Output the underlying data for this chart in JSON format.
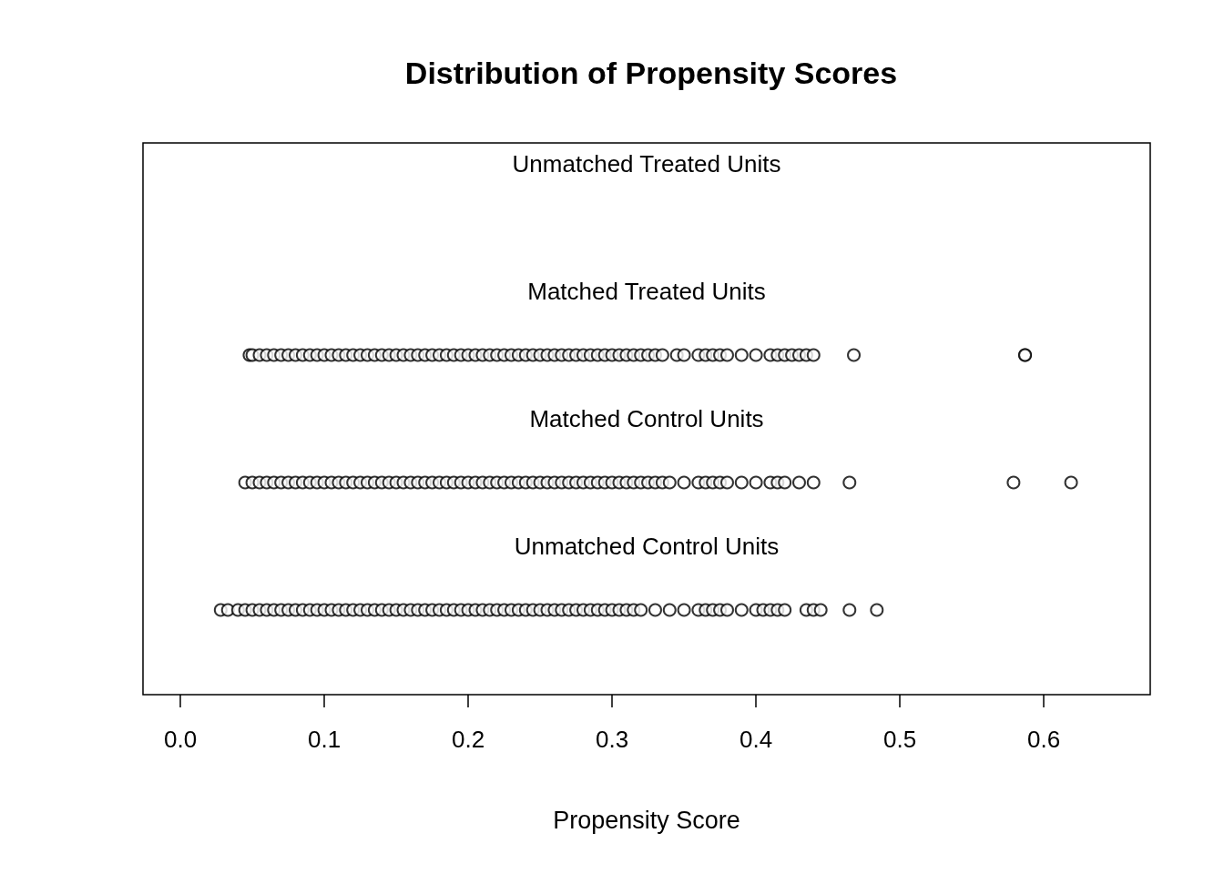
{
  "chart_data": {
    "type": "scatter",
    "title": "Distribution of Propensity Scores",
    "xlabel": "Propensity Score",
    "orientation": "horizontal",
    "marker": "circle",
    "grid": false,
    "categories": [
      "Unmatched Treated Units",
      "Matched Treated Units",
      "Matched Control Units",
      "Unmatched Control Units"
    ],
    "xlim": [
      -0.026,
      0.674
    ],
    "xticks": [
      {
        "value": 0,
        "label": "0.0"
      },
      0.1,
      0.2,
      0.3,
      0.4,
      0.5,
      0.6
    ],
    "series": [
      {
        "color": "#000000",
        "x": [
          "Matched Treated Units",
          "Matched Treated Units",
          "Matched Treated Units",
          "Matched Treated Units",
          "Matched Treated Units",
          "Matched Treated Units",
          "Matched Treated Units",
          "Matched Treated Units",
          "Matched Treated Units",
          "Matched Treated Units",
          "Matched Treated Units",
          "Matched Treated Units",
          "Matched Treated Units",
          "Matched Treated Units",
          "Matched Treated Units",
          "Matched Treated Units",
          "Matched Treated Units",
          "Matched Treated Units",
          "Matched Treated Units",
          "Matched Treated Units",
          "Matched Treated Units",
          "Matched Treated Units",
          "Matched Treated Units",
          "Matched Treated Units",
          "Matched Treated Units",
          "Matched Treated Units",
          "Matched Treated Units",
          "Matched Treated Units",
          "Matched Treated Units",
          "Matched Treated Units",
          "Matched Treated Units",
          "Matched Treated Units",
          "Matched Treated Units",
          "Matched Treated Units",
          "Matched Treated Units",
          "Matched Treated Units",
          "Matched Treated Units",
          "Matched Treated Units",
          "Matched Treated Units",
          "Matched Treated Units",
          "Matched Treated Units",
          "Matched Treated Units",
          "Matched Treated Units",
          "Matched Treated Units",
          "Matched Treated Units",
          "Matched Treated Units",
          "Matched Treated Units",
          "Matched Treated Units",
          "Matched Treated Units",
          "Matched Treated Units",
          "Matched Treated Units",
          "Matched Treated Units",
          "Matched Treated Units",
          "Matched Treated Units",
          "Matched Treated Units",
          "Matched Treated Units",
          "Matched Treated Units",
          "Matched Treated Units",
          "Matched Treated Units",
          "Matched Treated Units",
          "Matched Treated Units",
          "Matched Treated Units",
          "Matched Treated Units",
          "Matched Treated Units",
          "Matched Treated Units",
          "Matched Treated Units",
          "Matched Treated Units",
          "Matched Treated Units",
          "Matched Treated Units",
          "Matched Treated Units",
          "Matched Treated Units",
          "Matched Treated Units",
          "Matched Treated Units",
          "Matched Treated Units",
          "Matched Treated Units",
          "Matched Treated Units",
          "Matched Treated Units",
          "Matched Treated Units"
        ],
        "values": [
          0.048,
          0.05,
          0.055,
          0.06,
          0.065,
          0.07,
          0.075,
          0.08,
          0.085,
          0.09,
          0.095,
          0.1,
          0.105,
          0.11,
          0.115,
          0.12,
          0.125,
          0.13,
          0.135,
          0.14,
          0.145,
          0.15,
          0.155,
          0.16,
          0.165,
          0.17,
          0.175,
          0.18,
          0.185,
          0.19,
          0.195,
          0.2,
          0.205,
          0.21,
          0.215,
          0.22,
          0.225,
          0.23,
          0.235,
          0.24,
          0.245,
          0.25,
          0.255,
          0.26,
          0.265,
          0.27,
          0.275,
          0.28,
          0.285,
          0.29,
          0.295,
          0.3,
          0.305,
          0.31,
          0.315,
          0.32,
          0.325,
          0.33,
          0.335,
          0.345,
          0.35,
          0.36,
          0.365,
          0.37,
          0.375,
          0.38,
          0.39,
          0.4,
          0.41,
          0.415,
          0.42,
          0.425,
          0.43,
          0.435,
          0.44,
          0.468,
          0.587,
          0.587
        ]
      },
      {
        "color": "#000000",
        "x": [
          "Matched Control Units",
          "Matched Control Units",
          "Matched Control Units",
          "Matched Control Units",
          "Matched Control Units",
          "Matched Control Units",
          "Matched Control Units",
          "Matched Control Units",
          "Matched Control Units",
          "Matched Control Units",
          "Matched Control Units",
          "Matched Control Units",
          "Matched Control Units",
          "Matched Control Units",
          "Matched Control Units",
          "Matched Control Units",
          "Matched Control Units",
          "Matched Control Units",
          "Matched Control Units",
          "Matched Control Units",
          "Matched Control Units",
          "Matched Control Units",
          "Matched Control Units",
          "Matched Control Units",
          "Matched Control Units",
          "Matched Control Units",
          "Matched Control Units",
          "Matched Control Units",
          "Matched Control Units",
          "Matched Control Units",
          "Matched Control Units",
          "Matched Control Units",
          "Matched Control Units",
          "Matched Control Units",
          "Matched Control Units",
          "Matched Control Units",
          "Matched Control Units",
          "Matched Control Units",
          "Matched Control Units",
          "Matched Control Units",
          "Matched Control Units",
          "Matched Control Units",
          "Matched Control Units",
          "Matched Control Units",
          "Matched Control Units",
          "Matched Control Units",
          "Matched Control Units",
          "Matched Control Units",
          "Matched Control Units",
          "Matched Control Units",
          "Matched Control Units",
          "Matched Control Units",
          "Matched Control Units",
          "Matched Control Units",
          "Matched Control Units",
          "Matched Control Units",
          "Matched Control Units",
          "Matched Control Units",
          "Matched Control Units",
          "Matched Control Units",
          "Matched Control Units",
          "Matched Control Units",
          "Matched Control Units",
          "Matched Control Units",
          "Matched Control Units",
          "Matched Control Units",
          "Matched Control Units",
          "Matched Control Units",
          "Matched Control Units",
          "Matched Control Units",
          "Matched Control Units",
          "Matched Control Units",
          "Matched Control Units",
          "Matched Control Units",
          "Matched Control Units",
          "Matched Control Units"
        ],
        "values": [
          0.045,
          0.05,
          0.055,
          0.06,
          0.065,
          0.07,
          0.075,
          0.08,
          0.085,
          0.09,
          0.095,
          0.1,
          0.105,
          0.11,
          0.115,
          0.12,
          0.125,
          0.13,
          0.135,
          0.14,
          0.145,
          0.15,
          0.155,
          0.16,
          0.165,
          0.17,
          0.175,
          0.18,
          0.185,
          0.19,
          0.195,
          0.2,
          0.205,
          0.21,
          0.215,
          0.22,
          0.225,
          0.23,
          0.235,
          0.24,
          0.245,
          0.25,
          0.255,
          0.26,
          0.265,
          0.27,
          0.275,
          0.28,
          0.285,
          0.29,
          0.295,
          0.3,
          0.305,
          0.31,
          0.315,
          0.32,
          0.325,
          0.33,
          0.335,
          0.34,
          0.35,
          0.36,
          0.365,
          0.37,
          0.375,
          0.38,
          0.39,
          0.4,
          0.41,
          0.415,
          0.42,
          0.43,
          0.44,
          0.465,
          0.579,
          0.619
        ]
      },
      {
        "color": "#000000",
        "x": [
          "Unmatched Control Units",
          "Unmatched Control Units",
          "Unmatched Control Units",
          "Unmatched Control Units",
          "Unmatched Control Units",
          "Unmatched Control Units",
          "Unmatched Control Units",
          "Unmatched Control Units",
          "Unmatched Control Units",
          "Unmatched Control Units",
          "Unmatched Control Units",
          "Unmatched Control Units",
          "Unmatched Control Units",
          "Unmatched Control Units",
          "Unmatched Control Units",
          "Unmatched Control Units",
          "Unmatched Control Units",
          "Unmatched Control Units",
          "Unmatched Control Units",
          "Unmatched Control Units",
          "Unmatched Control Units",
          "Unmatched Control Units",
          "Unmatched Control Units",
          "Unmatched Control Units",
          "Unmatched Control Units",
          "Unmatched Control Units",
          "Unmatched Control Units",
          "Unmatched Control Units",
          "Unmatched Control Units",
          "Unmatched Control Units",
          "Unmatched Control Units",
          "Unmatched Control Units",
          "Unmatched Control Units",
          "Unmatched Control Units",
          "Unmatched Control Units",
          "Unmatched Control Units",
          "Unmatched Control Units",
          "Unmatched Control Units",
          "Unmatched Control Units",
          "Unmatched Control Units",
          "Unmatched Control Units",
          "Unmatched Control Units",
          "Unmatched Control Units",
          "Unmatched Control Units",
          "Unmatched Control Units",
          "Unmatched Control Units",
          "Unmatched Control Units",
          "Unmatched Control Units",
          "Unmatched Control Units",
          "Unmatched Control Units",
          "Unmatched Control Units",
          "Unmatched Control Units",
          "Unmatched Control Units",
          "Unmatched Control Units",
          "Unmatched Control Units",
          "Unmatched Control Units",
          "Unmatched Control Units",
          "Unmatched Control Units",
          "Unmatched Control Units",
          "Unmatched Control Units",
          "Unmatched Control Units",
          "Unmatched Control Units",
          "Unmatched Control Units",
          "Unmatched Control Units",
          "Unmatched Control Units",
          "Unmatched Control Units",
          "Unmatched Control Units",
          "Unmatched Control Units",
          "Unmatched Control Units",
          "Unmatched Control Units",
          "Unmatched Control Units",
          "Unmatched Control Units",
          "Unmatched Control Units",
          "Unmatched Control Units",
          "Unmatched Control Units",
          "Unmatched Control Units",
          "Unmatched Control Units",
          "Unmatched Control Units"
        ],
        "values": [
          0.028,
          0.033,
          0.04,
          0.045,
          0.05,
          0.055,
          0.06,
          0.065,
          0.07,
          0.075,
          0.08,
          0.085,
          0.09,
          0.095,
          0.1,
          0.105,
          0.11,
          0.115,
          0.12,
          0.125,
          0.13,
          0.135,
          0.14,
          0.145,
          0.15,
          0.155,
          0.16,
          0.165,
          0.17,
          0.175,
          0.18,
          0.185,
          0.19,
          0.195,
          0.2,
          0.205,
          0.21,
          0.215,
          0.22,
          0.225,
          0.23,
          0.235,
          0.24,
          0.245,
          0.25,
          0.255,
          0.26,
          0.265,
          0.27,
          0.275,
          0.28,
          0.285,
          0.29,
          0.295,
          0.3,
          0.305,
          0.31,
          0.315,
          0.32,
          0.33,
          0.34,
          0.35,
          0.36,
          0.365,
          0.37,
          0.375,
          0.38,
          0.39,
          0.4,
          0.405,
          0.41,
          0.415,
          0.42,
          0.435,
          0.44,
          0.445,
          0.465,
          0.484
        ]
      }
    ]
  }
}
